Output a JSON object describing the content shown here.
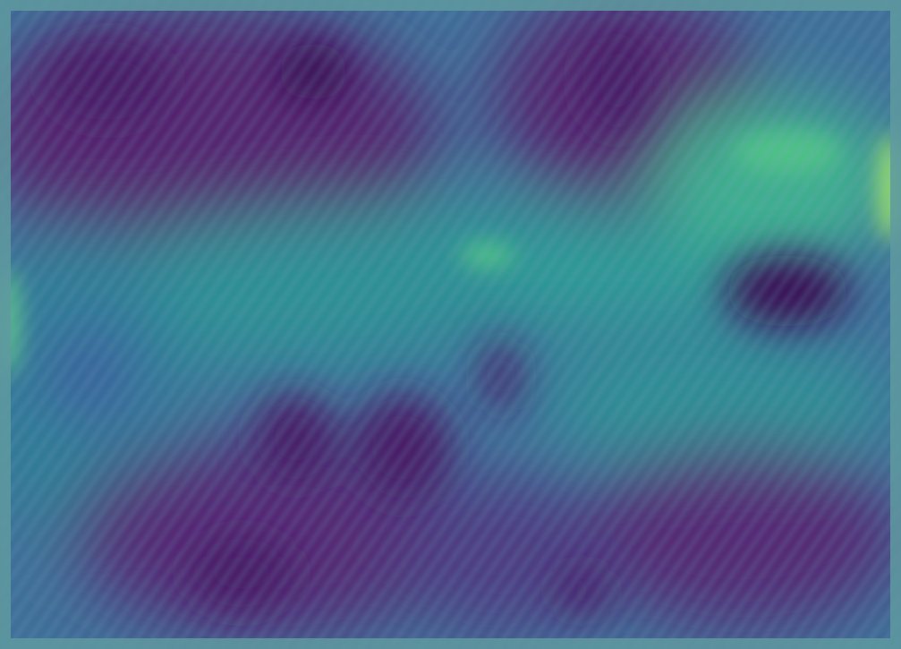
{
  "image": {
    "subject": "blurred texture",
    "palette": {
      "border": "#5f9aa0",
      "base": "#3f6f98",
      "dark_purple": "#4a1f68",
      "deep_purple": "#3a0f55",
      "mid_purple": "#5a2f7a",
      "teal": "#2f8f94",
      "green_teal": "#3fae8f",
      "bright_green": "#7fd66a",
      "blue": "#3d5f9e"
    }
  }
}
